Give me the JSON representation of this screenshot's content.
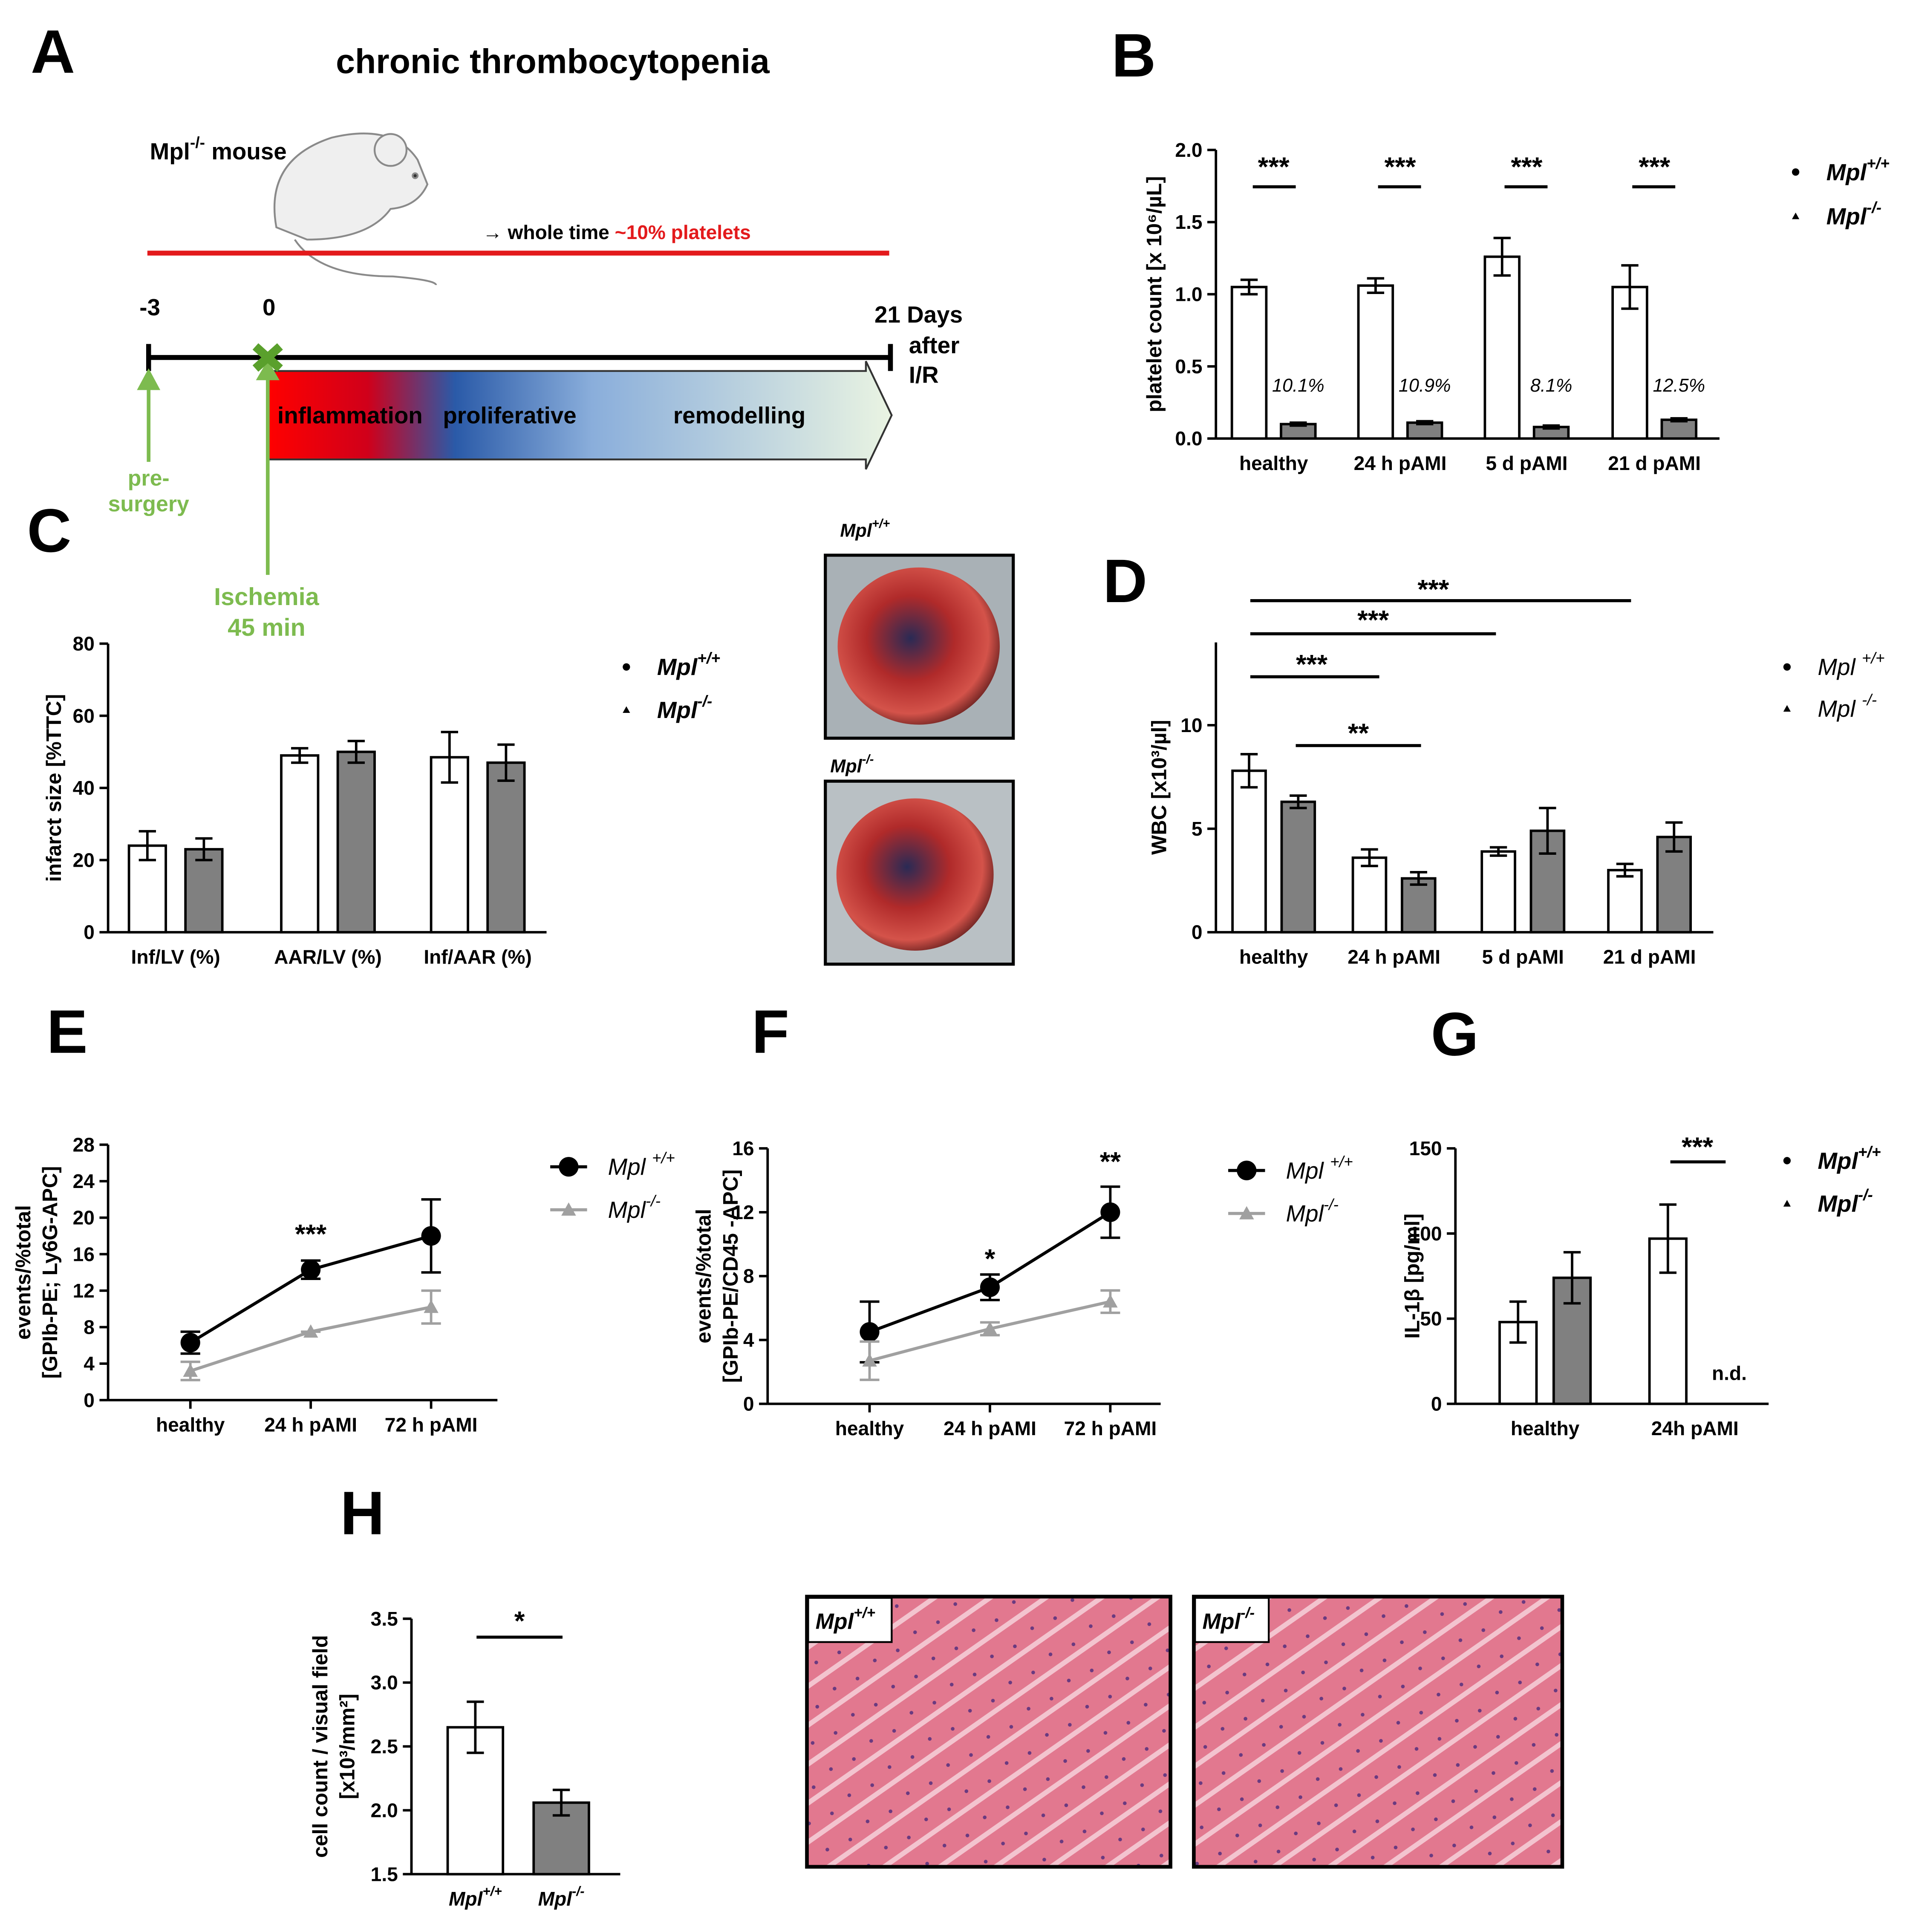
{
  "panel_labels": [
    "A",
    "B",
    "C",
    "D",
    "E",
    "F",
    "G",
    "H"
  ],
  "timeline": {
    "title": "chronic thrombocytopenia",
    "mouse_label": "Mpl-/- mouse",
    "note": "→ whole time",
    "note_highlight": "~10% platelets",
    "days": [
      "-3",
      "0"
    ],
    "end_label": [
      "21 Days",
      "after",
      "I/R"
    ],
    "phases": [
      "inflammation",
      "proliferative",
      "remodelling"
    ],
    "pre_surgery": [
      "pre-",
      "surgery"
    ],
    "ischemia": [
      "Ischemia",
      "45 min"
    ]
  },
  "images": {
    "heart_labels": [
      "Mpl+/+",
      "Mpl-/-"
    ],
    "histology_labels": [
      "Mpl+/+",
      "Mpl-/-"
    ]
  },
  "chart_data": [
    {
      "type": "bar",
      "ylabel": "platelet count [x 10⁶/µL]",
      "categories": [
        "healthy",
        "24 h pAMI",
        "5 d pAMI",
        "21 d pAMI"
      ],
      "series": [
        {
          "name": "Mpl+/+",
          "color": "#ffffff",
          "marker": "circle",
          "values": [
            1.05,
            1.06,
            1.26,
            1.05
          ],
          "errors": [
            0.05,
            0.05,
            0.13,
            0.15
          ]
        },
        {
          "name": "Mpl-/-",
          "color": "#808080",
          "marker": "triangle",
          "values": [
            0.1,
            0.11,
            0.08,
            0.13
          ],
          "errors": [
            0.01,
            0.01,
            0.01,
            0.01
          ],
          "bar_labels": [
            "10.1%",
            "10.9%",
            "8.1%",
            "12.5%"
          ]
        }
      ],
      "ylim": [
        0,
        2
      ],
      "yticks": [
        {
          "value": 0,
          "label": "0.0"
        },
        0.5,
        {
          "value": 1,
          "label": "1.0"
        },
        1.5,
        {
          "value": 2,
          "label": "2.0"
        }
      ],
      "annotations": [
        "***",
        "***",
        "***",
        "***"
      ]
    },
    {
      "type": "bar",
      "ylabel": "infarct size [%TTC]",
      "categories": [
        "Inf/LV (%)",
        "AAR/LV (%)",
        "Inf/AAR (%)"
      ],
      "series": [
        {
          "name": "Mpl+/+",
          "color": "#ffffff",
          "marker": "circle",
          "values": [
            24,
            49,
            48.5
          ],
          "errors": [
            4,
            2,
            7
          ]
        },
        {
          "name": "Mpl-/-",
          "color": "#808080",
          "marker": "triangle",
          "values": [
            23,
            50,
            47
          ],
          "errors": [
            3,
            3,
            5
          ]
        }
      ],
      "ylim": [
        0,
        80
      ],
      "yticks": [
        0,
        20,
        40,
        60,
        80
      ]
    },
    {
      "type": "bar",
      "ylabel": "WBC [x10³/µl]",
      "categories": [
        "healthy",
        "24 h pAMI",
        "5 d pAMI",
        "21 d pAMI"
      ],
      "series": [
        {
          "name": "Mpl +/+",
          "color": "#ffffff",
          "marker": "circle",
          "values": [
            7.8,
            3.6,
            3.9,
            3.0
          ],
          "errors": [
            0.8,
            0.4,
            0.2,
            0.3
          ]
        },
        {
          "name": "Mpl -/-",
          "color": "#808080",
          "marker": "triangle",
          "values": [
            6.3,
            2.6,
            4.9,
            4.6
          ],
          "errors": [
            0.3,
            0.3,
            1.1,
            0.7
          ]
        }
      ],
      "ylim": [
        0,
        14
      ],
      "yticks": [
        0,
        5,
        10
      ],
      "annotations": [
        "***",
        "***",
        "***",
        "**"
      ]
    },
    {
      "type": "line",
      "ylabel": [
        "events/%total",
        "[GPIb-PE; Ly6G-APC]"
      ],
      "categories": [
        "healthy",
        "24 h pAMI",
        "72 h pAMI"
      ],
      "series": [
        {
          "name": "Mpl +/+",
          "color": "#000000",
          "marker": "circle",
          "values": [
            6.3,
            14.3,
            18
          ],
          "errors": [
            1.2,
            1,
            4
          ]
        },
        {
          "name": "Mpl-/-",
          "color": "#a0a0a0",
          "marker": "triangle",
          "values": [
            3.2,
            7.5,
            10.2
          ],
          "errors": [
            1,
            0,
            1.8
          ]
        }
      ],
      "ylim": [
        0,
        28
      ],
      "yticks": [
        0,
        4,
        8,
        12,
        16,
        20,
        24,
        28
      ],
      "annotations": [
        "***"
      ]
    },
    {
      "type": "line",
      "ylabel": [
        "events/%total",
        "[GPIb-PE/CD45 -APC]"
      ],
      "categories": [
        "healthy",
        "24 h pAMI",
        "72 h pAMI"
      ],
      "series": [
        {
          "name": "Mpl +/+",
          "color": "#000000",
          "marker": "circle",
          "values": [
            4.5,
            7.3,
            12
          ],
          "errors": [
            1.9,
            0.8,
            1.6
          ]
        },
        {
          "name": "Mpl-/-",
          "color": "#a0a0a0",
          "marker": "triangle",
          "values": [
            2.7,
            4.7,
            6.4
          ],
          "errors": [
            1.2,
            0.4,
            0.7
          ]
        }
      ],
      "ylim": [
        0,
        16
      ],
      "yticks": [
        0,
        4,
        8,
        12,
        16
      ],
      "annotations": [
        "*",
        "**"
      ]
    },
    {
      "type": "bar",
      "ylabel": "IL-1β [pg/ml]",
      "categories": [
        "healthy",
        "24h pAMI"
      ],
      "series": [
        {
          "name": "Mpl+/+",
          "color": "#ffffff",
          "marker": "circle",
          "values": [
            48,
            97
          ],
          "errors": [
            12,
            20
          ]
        },
        {
          "name": "Mpl-/-",
          "color": "#808080",
          "marker": "triangle",
          "values": [
            74,
            null
          ],
          "errors": [
            15,
            null
          ]
        }
      ],
      "ylim": [
        0,
        150
      ],
      "yticks": [
        0,
        50,
        100,
        150
      ],
      "annotations": [
        "***",
        "n.d."
      ]
    },
    {
      "type": "bar",
      "ylabel": [
        "cell count / visual field",
        "[x10³/mm²]"
      ],
      "categories": [
        "Mpl+/+",
        "Mpl-/-"
      ],
      "values": [
        2.65,
        2.06
      ],
      "errors": [
        0.2,
        0.1
      ],
      "colors": [
        "#ffffff",
        "#808080"
      ],
      "ylim": [
        1.5,
        3.5
      ],
      "yticks": [
        1.5,
        {
          "value": 2,
          "label": "2.0"
        },
        2.5,
        {
          "value": 3,
          "label": "3.0"
        },
        3.5
      ],
      "annotations": [
        "*"
      ]
    }
  ]
}
